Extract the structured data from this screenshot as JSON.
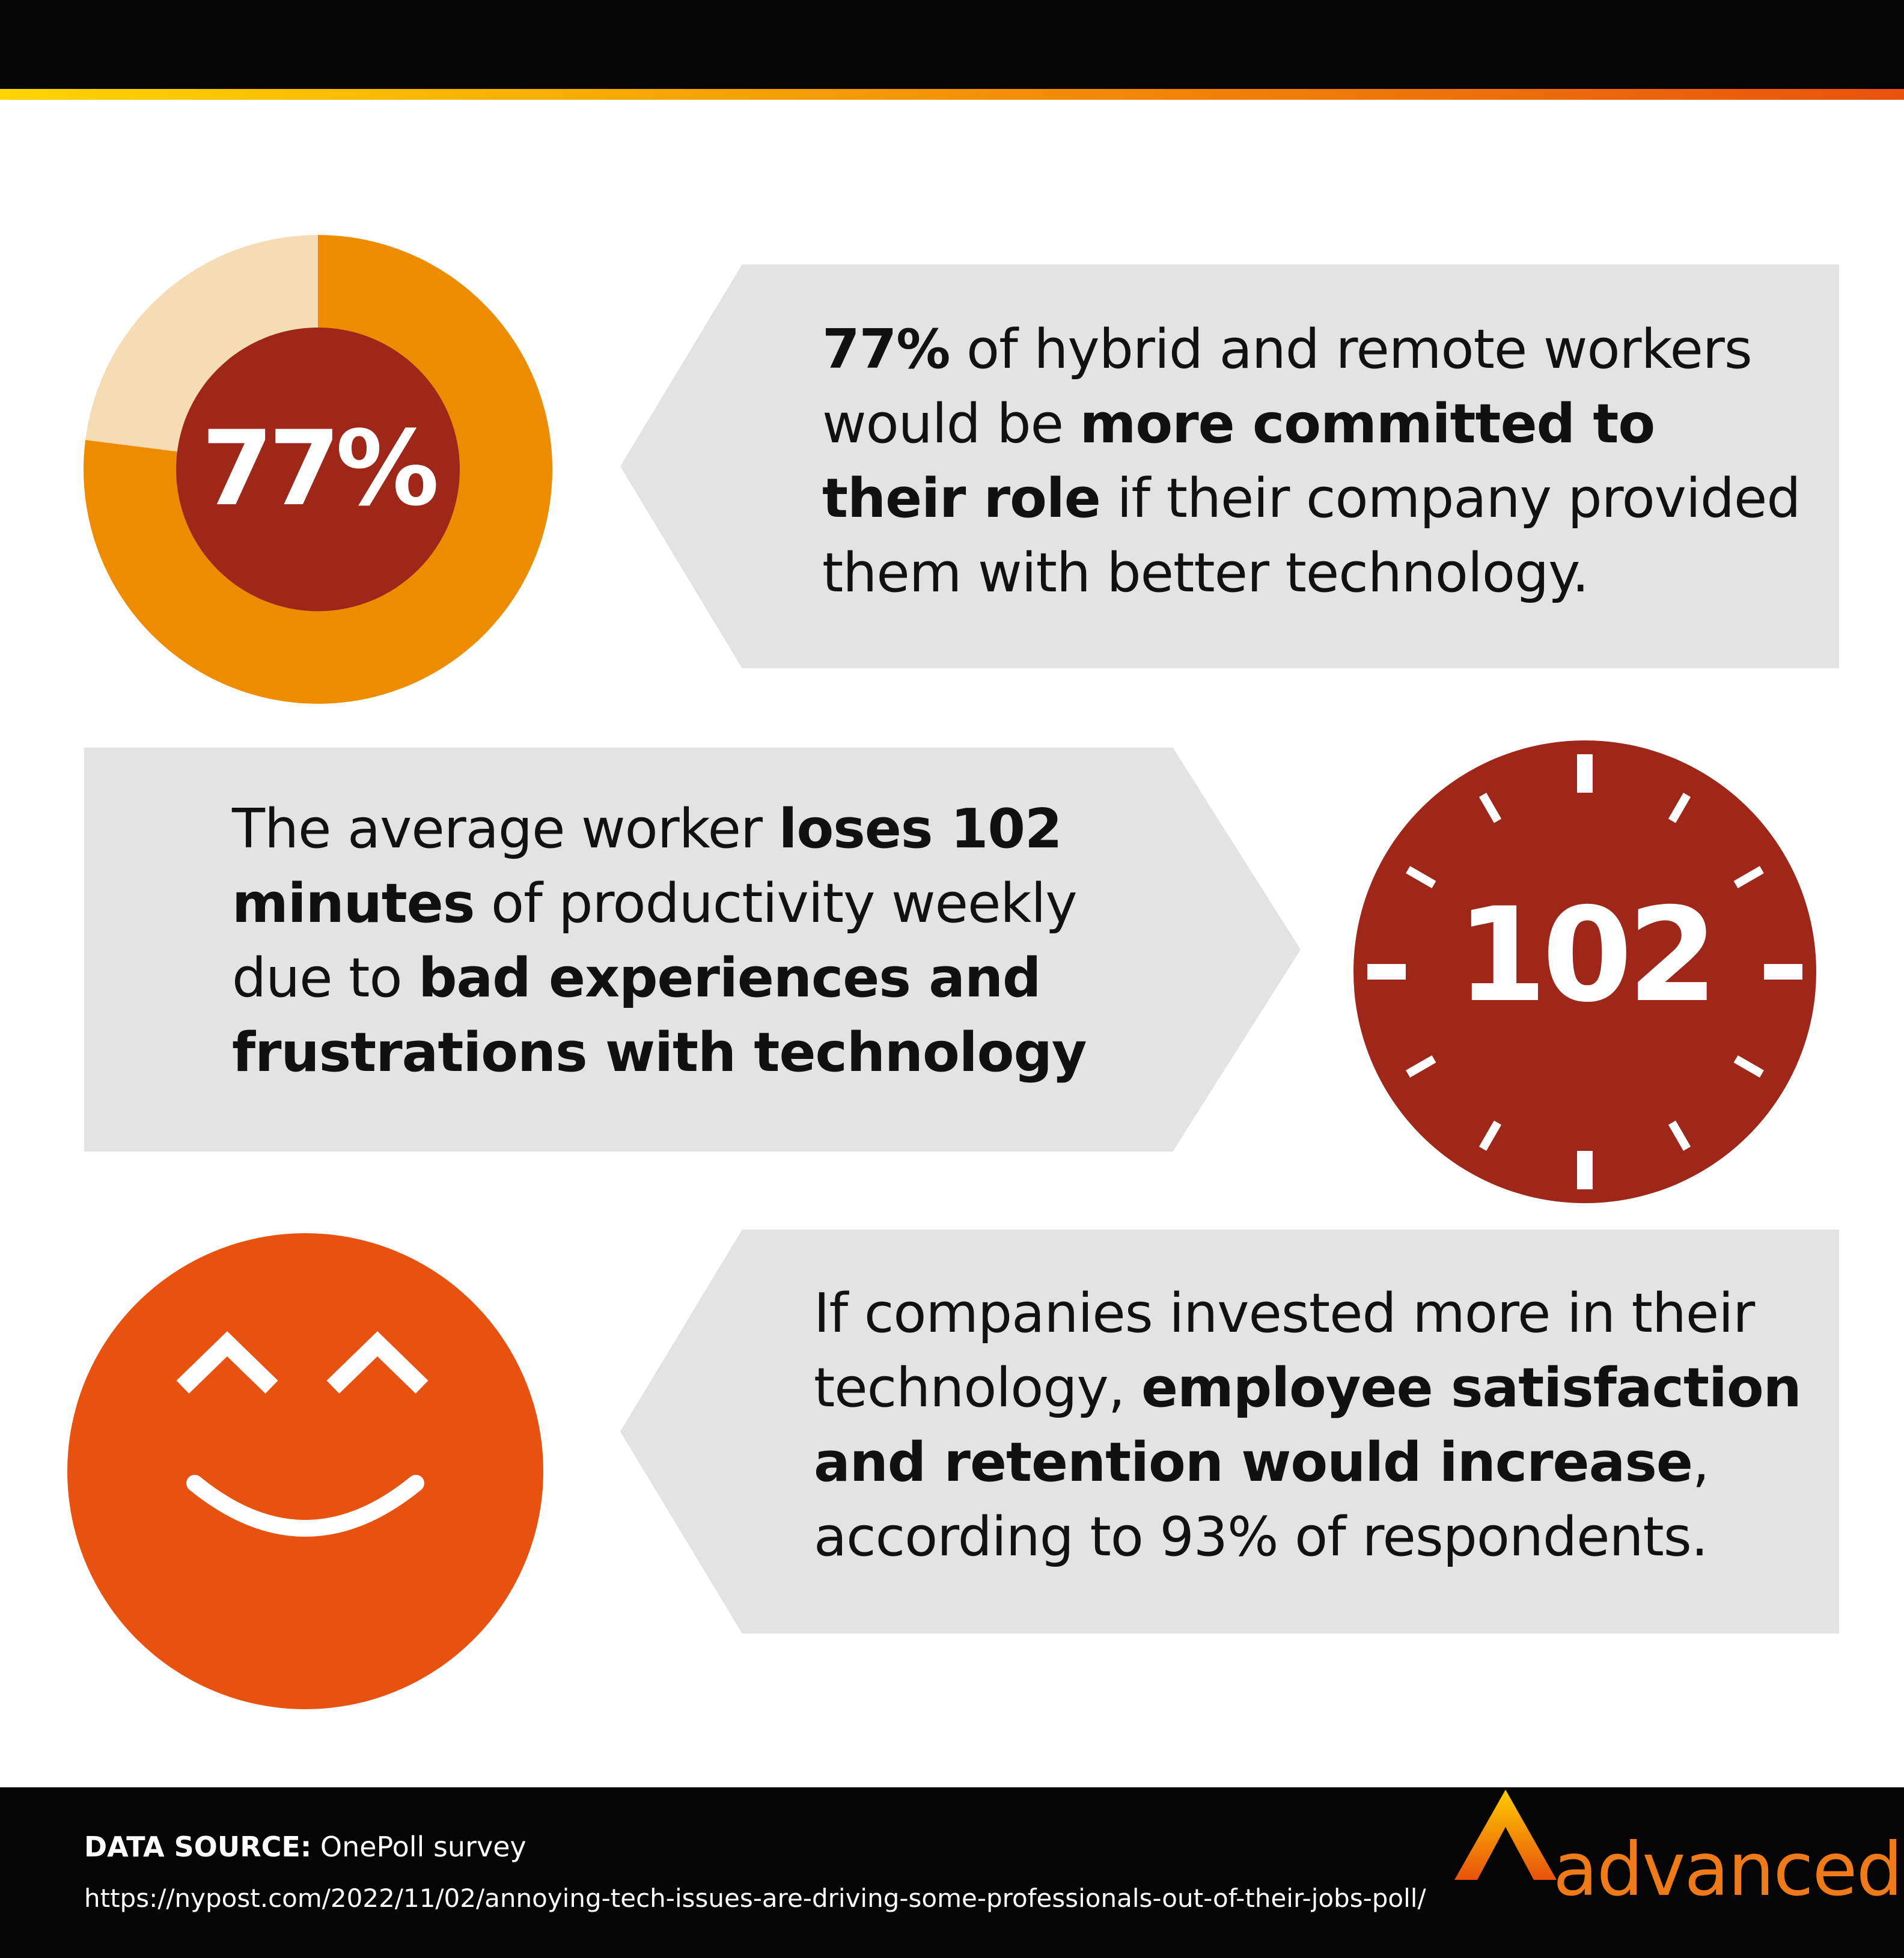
{
  "colors": {
    "orange": "#ee8c00",
    "light_orange": "#f6dcb4",
    "dark_red": "#9e2719",
    "red_orange": "#e75210",
    "panel_gray": "#e3e3e3",
    "accent_start": "#ffd400",
    "accent_end": "#e8520d"
  },
  "stat1": {
    "percent_value": 77,
    "circle_label": "77%",
    "text_bold_1": "77%",
    "text_plain_1": " of hybrid and remote workers would be ",
    "text_bold_2": "more committed to their role",
    "text_plain_2": " if their company provided them with better technology."
  },
  "stat2": {
    "clock_label": "102",
    "text_plain_1": "The average worker ",
    "text_bold_1": "loses 102 minutes",
    "text_plain_2": " of productivity weekly due to ",
    "text_bold_2": "bad experiences and frustrations with technology"
  },
  "stat3": {
    "icon": "smiley-face-icon",
    "text_plain_1": "If companies invested more in their technology, ",
    "text_bold_1": "employee satisfaction and retention would increase",
    "text_plain_2": ", according to 93% of respondents."
  },
  "footer": {
    "data_source_label": "DATA SOURCE:",
    "data_source_value": " OnePoll survey",
    "url": "https://nypost.com/2022/11/02/annoying-tech-issues-are-driving-some-professionals-out-of-their-jobs-poll/",
    "logo_text": "advanced"
  }
}
